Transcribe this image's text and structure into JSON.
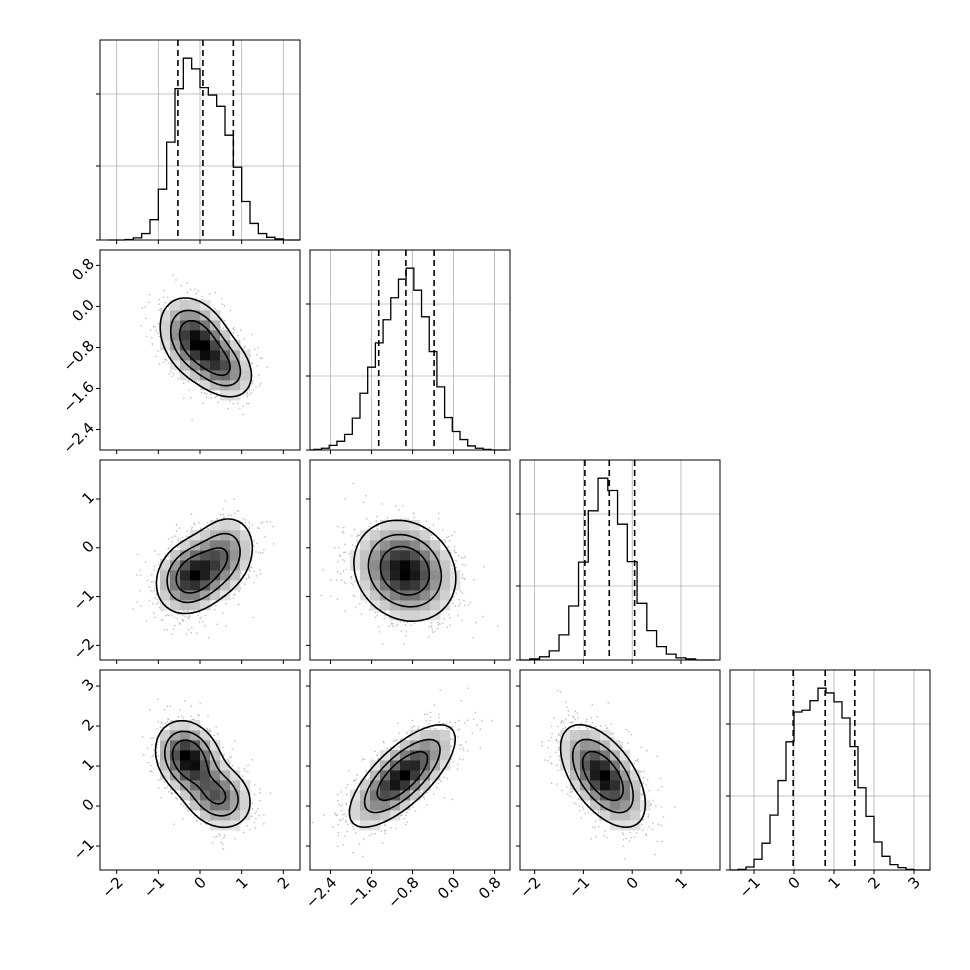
{
  "chart_data": {
    "type": "corner",
    "description_source": "corner plot of 4 parameters: 1D histograms on diagonal, 2D density/contour plots below",
    "params": [
      {
        "range": [
          -2.4,
          2.4
        ],
        "ticks": [
          -2,
          -1,
          0,
          1,
          2
        ],
        "tick_labels": [
          "−2",
          "−1",
          "0",
          "1",
          "2"
        ],
        "quantiles": [
          -0.53,
          0.07,
          0.8
        ],
        "hist_centers": [
          -2.1,
          -1.9,
          -1.7,
          -1.5,
          -1.3,
          -1.1,
          -0.9,
          -0.7,
          -0.5,
          -0.3,
          -0.1,
          0.1,
          0.3,
          0.5,
          0.7,
          0.9,
          1.1,
          1.3,
          1.5,
          1.7,
          1.9,
          2.1,
          2.3
        ],
        "hist_values": [
          0,
          0,
          1,
          4,
          12,
          38,
          95,
          183,
          283,
          340,
          320,
          285,
          271,
          250,
          196,
          136,
          72,
          31,
          12,
          5,
          2,
          0,
          0
        ]
      },
      {
        "range": [
          -2.8,
          1.1
        ],
        "ticks": [
          -2.4,
          -1.6,
          -0.8,
          0.0,
          0.8
        ],
        "tick_labels": [
          "−2.4",
          "−1.6",
          "−0.8",
          "0.0",
          "0.8"
        ],
        "quantiles": [
          -1.46,
          -0.93,
          -0.38
        ],
        "hist_centers": [
          -2.8,
          -2.65,
          -2.5,
          -2.35,
          -2.2,
          -2.05,
          -1.9,
          -1.75,
          -1.6,
          -1.45,
          -1.3,
          -1.15,
          -1.0,
          -0.85,
          -0.7,
          -0.55,
          -0.4,
          -0.25,
          -0.1,
          0.05,
          0.2,
          0.35,
          0.5,
          0.65,
          0.8,
          0.95
        ],
        "hist_values": [
          0,
          1,
          3,
          8,
          15,
          27,
          55,
          98,
          143,
          185,
          225,
          263,
          295,
          314,
          276,
          230,
          170,
          109,
          56,
          32,
          18,
          7,
          3,
          1,
          0,
          0
        ]
      },
      {
        "range": [
          -2.3,
          1.8
        ],
        "ticks": [
          -2,
          -1,
          0,
          1
        ],
        "tick_labels": [
          "−2",
          "−1",
          "0",
          "1"
        ],
        "quantiles": [
          -0.97,
          -0.47,
          0.05
        ],
        "hist_centers": [
          -2.2,
          -2.0,
          -1.8,
          -1.6,
          -1.4,
          -1.2,
          -1.0,
          -0.8,
          -0.6,
          -0.4,
          -0.2,
          0.0,
          0.2,
          0.4,
          0.6,
          0.8,
          1.0,
          1.2,
          1.4,
          1.6
        ],
        "hist_values": [
          0,
          2,
          6,
          17,
          47,
          101,
          183,
          279,
          340,
          317,
          254,
          184,
          106,
          55,
          25,
          11,
          4,
          2,
          0,
          0
        ]
      },
      {
        "range": [
          -1.6,
          3.4
        ],
        "ticks": [
          -1,
          0,
          1,
          2,
          3
        ],
        "tick_labels": [
          "−1",
          "0",
          "1",
          "2",
          "3"
        ],
        "quantiles": [
          -0.02,
          0.78,
          1.52
        ],
        "hist_centers": [
          -1.5,
          -1.3,
          -1.1,
          -0.9,
          -0.7,
          -0.5,
          -0.3,
          -0.1,
          0.1,
          0.3,
          0.5,
          0.7,
          0.9,
          1.1,
          1.3,
          1.5,
          1.7,
          1.9,
          2.1,
          2.3,
          2.5,
          2.7,
          2.9,
          3.1,
          3.3
        ],
        "hist_values": [
          0,
          1,
          5,
          18,
          45,
          92,
          150,
          215,
          265,
          268,
          284,
          305,
          297,
          282,
          255,
          207,
          138,
          90,
          47,
          23,
          9,
          4,
          1,
          0,
          0
        ]
      }
    ],
    "pairs": [
      {
        "row": 1,
        "col": 0,
        "peaks": [
          {
            "mx": -0.1,
            "my": -0.65,
            "sx": 0.42,
            "sy": 0.4,
            "rho": -0.3,
            "w": 0.62
          },
          {
            "mx": 0.55,
            "my": -1.18,
            "sx": 0.38,
            "sy": 0.32,
            "rho": -0.3,
            "w": 0.38
          }
        ]
      },
      {
        "row": 2,
        "col": 0,
        "peaks": [
          {
            "mx": -0.2,
            "my": -0.58,
            "sx": 0.42,
            "sy": 0.38,
            "rho": 0.2,
            "w": 0.62
          },
          {
            "mx": 0.55,
            "my": -0.15,
            "sx": 0.4,
            "sy": 0.42,
            "rho": 0.2,
            "w": 0.38
          }
        ]
      },
      {
        "row": 2,
        "col": 1,
        "peaks": [
          {
            "mx": -0.95,
            "my": -0.47,
            "sx": 0.48,
            "sy": 0.5,
            "rho": -0.15,
            "w": 1.0
          }
        ]
      },
      {
        "row": 3,
        "col": 0,
        "peaks": [
          {
            "mx": -0.28,
            "my": 1.2,
            "sx": 0.38,
            "sy": 0.45,
            "rho": -0.2,
            "w": 0.6
          },
          {
            "mx": 0.42,
            "my": 0.25,
            "sx": 0.42,
            "sy": 0.42,
            "rho": -0.2,
            "w": 0.4
          }
        ]
      },
      {
        "row": 3,
        "col": 1,
        "peaks": [
          {
            "mx": -1.0,
            "my": 0.75,
            "sx": 0.5,
            "sy": 0.62,
            "rho": 0.72,
            "w": 1.0
          }
        ]
      },
      {
        "row": 3,
        "col": 2,
        "peaks": [
          {
            "mx": -0.6,
            "my": 0.75,
            "sx": 0.42,
            "sy": 0.62,
            "rho": -0.55,
            "w": 1.0
          }
        ]
      }
    ]
  }
}
